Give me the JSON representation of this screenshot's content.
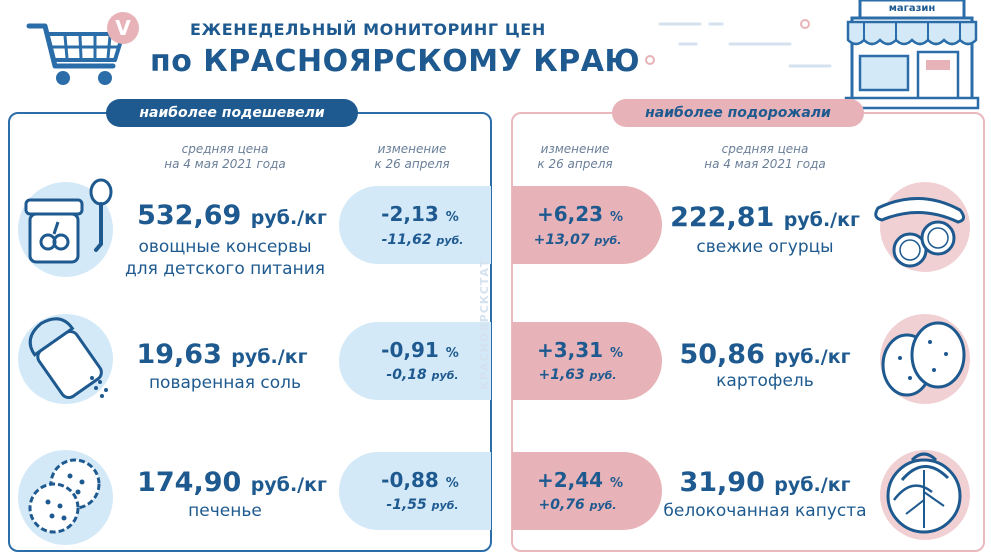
{
  "header": {
    "line1": "ЕЖЕНЕДЕЛЬНЫЙ МОНИТОРИНГ ЦЕН",
    "line2": "по КРАСНОЯРСКОМУ КРАЮ",
    "shop_sign": "магазин",
    "logo_letter": "V"
  },
  "left": {
    "tag": "наиболее подешевели",
    "col_price": "средняя цена\nна 4 мая 2021 года",
    "col_change": "изменение\nк 26 апреля",
    "items": [
      {
        "price": "532,69",
        "unit": "руб./кг",
        "name1": "овощные консервы",
        "name2": "для детского питания",
        "pct": "-2,13",
        "pct_unit": "%",
        "rub": "-11,62",
        "rub_unit": "руб."
      },
      {
        "price": "19,63",
        "unit": "руб./кг",
        "name1": "поваренная соль",
        "name2": "",
        "pct": "-0,91",
        "pct_unit": "%",
        "rub": "-0,18",
        "rub_unit": "руб."
      },
      {
        "price": "174,90",
        "unit": "руб./кг",
        "name1": "печенье",
        "name2": "",
        "pct": "-0,88",
        "pct_unit": "%",
        "rub": "-1,55",
        "rub_unit": "руб."
      }
    ]
  },
  "right": {
    "tag": "наиболее подорожали",
    "col_change": "изменение\nк 26 апреля",
    "col_price": "средняя цена\nна 4 мая 2021 года",
    "items": [
      {
        "price": "222,81",
        "unit": "руб./кг",
        "name1": "свежие огурцы",
        "pct": "+6,23",
        "pct_unit": "%",
        "rub": "+13,07",
        "rub_unit": "руб."
      },
      {
        "price": "50,86",
        "unit": "руб./кг",
        "name1": "картофель",
        "pct": "+3,31",
        "pct_unit": "%",
        "rub": "+1,63",
        "rub_unit": "руб."
      },
      {
        "price": "31,90",
        "unit": "руб./кг",
        "name1": "белокочанная капуста",
        "pct": "+2,44",
        "pct_unit": "%",
        "rub": "+0,76",
        "rub_unit": "руб."
      }
    ]
  },
  "watermark": "КРАСНОЯРСКСТАТ",
  "colors": {
    "blue": "#1e5a8f",
    "light_blue": "#d4e9f8",
    "pink": "#e8b3b8",
    "light_pink": "#f0d0d3"
  }
}
